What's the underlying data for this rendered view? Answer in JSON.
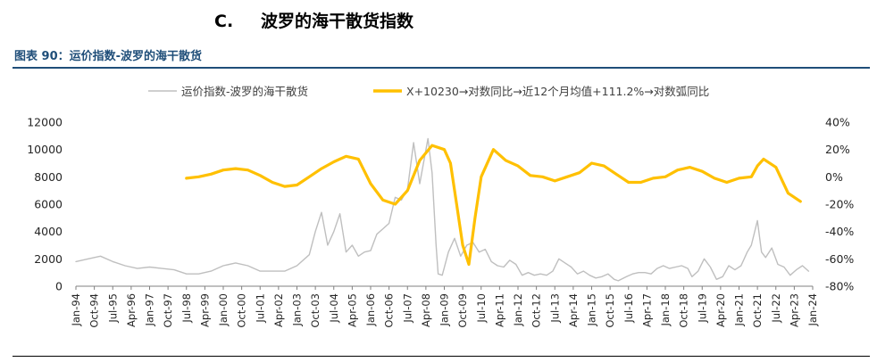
{
  "heading": {
    "number": "C.",
    "title": "波罗的海干散货指数"
  },
  "figure_caption": "图表 90：运价指数-波罗的海干散货",
  "colors": {
    "bdi_line": "#bfbfbf",
    "cycle_line": "#ffc000",
    "caption": "#1f4e79"
  },
  "chart_data": {
    "type": "line",
    "legend_position": "top",
    "grid": false,
    "x_tick_labels": [
      "Jan-94",
      "Oct-94",
      "Jul-95",
      "Apr-96",
      "Jan-97",
      "Oct-97",
      "Jul-98",
      "Apr-99",
      "Jan-00",
      "Oct-00",
      "Jul-01",
      "Apr-02",
      "Jan-03",
      "Oct-03",
      "Jul-04",
      "Apr-05",
      "Jan-06",
      "Oct-06",
      "Jul-07",
      "Apr-08",
      "Jan-09",
      "Oct-09",
      "Jul-10",
      "Apr-11",
      "Jan-12",
      "Oct-12",
      "Jul-13",
      "Apr-14",
      "Jan-15",
      "Oct-15",
      "Jul-16",
      "Apr-17",
      "Jan-18",
      "Oct-18",
      "Jul-19",
      "Apr-20",
      "Jan-21",
      "Oct-21",
      "Jul-22",
      "Apr-23",
      "Jan-24"
    ],
    "x_range": [
      "1994-01",
      "2024-01"
    ],
    "y_left": {
      "range": [
        0,
        12000
      ],
      "ticks": [
        "0",
        "2000",
        "4000",
        "6000",
        "8000",
        "10000",
        "12000"
      ]
    },
    "y_right": {
      "range": [
        -80,
        40
      ],
      "ticks": [
        "-80%",
        "-60%",
        "-40%",
        "-20%",
        "0%",
        "20%",
        "40%"
      ]
    },
    "series": [
      {
        "name": "运价指数-波罗的海干散货",
        "axis": "left",
        "x": [
          "1994-01",
          "1994-07",
          "1995-01",
          "1995-07",
          "1996-01",
          "1996-07",
          "1997-01",
          "1997-07",
          "1998-01",
          "1998-07",
          "1999-01",
          "1999-07",
          "2000-01",
          "2000-07",
          "2001-01",
          "2001-07",
          "2002-01",
          "2002-07",
          "2003-01",
          "2003-07",
          "2003-10",
          "2004-01",
          "2004-04",
          "2004-07",
          "2004-10",
          "2005-01",
          "2005-04",
          "2005-07",
          "2005-10",
          "2006-01",
          "2006-04",
          "2006-07",
          "2006-10",
          "2007-01",
          "2007-04",
          "2007-07",
          "2007-10",
          "2008-01",
          "2008-05",
          "2008-07",
          "2008-09",
          "2008-10",
          "2008-12",
          "2009-03",
          "2009-06",
          "2009-09",
          "2009-12",
          "2010-03",
          "2010-06",
          "2010-09",
          "2010-12",
          "2011-03",
          "2011-06",
          "2011-09",
          "2011-12",
          "2012-03",
          "2012-06",
          "2012-09",
          "2012-12",
          "2013-03",
          "2013-06",
          "2013-09",
          "2013-12",
          "2014-03",
          "2014-06",
          "2014-09",
          "2014-12",
          "2015-03",
          "2015-06",
          "2015-09",
          "2015-12",
          "2016-02",
          "2016-06",
          "2016-09",
          "2016-12",
          "2017-03",
          "2017-06",
          "2017-09",
          "2017-12",
          "2018-03",
          "2018-06",
          "2018-09",
          "2018-12",
          "2019-02",
          "2019-05",
          "2019-08",
          "2019-11",
          "2020-02",
          "2020-05",
          "2020-08",
          "2020-11",
          "2021-02",
          "2021-05",
          "2021-07",
          "2021-10",
          "2021-12",
          "2022-02",
          "2022-05",
          "2022-08",
          "2022-11",
          "2023-02",
          "2023-05",
          "2023-08",
          "2023-11"
        ],
        "values": [
          1800,
          2000,
          2200,
          1800,
          1500,
          1300,
          1400,
          1300,
          1200,
          900,
          900,
          1100,
          1500,
          1700,
          1500,
          1100,
          1100,
          1100,
          1500,
          2300,
          4000,
          5400,
          3000,
          4000,
          5300,
          2500,
          3000,
          2200,
          2500,
          2600,
          3800,
          4200,
          4600,
          6500,
          6300,
          7100,
          10500,
          7500,
          10800,
          8300,
          3000,
          900,
          800,
          2500,
          3500,
          2200,
          3000,
          3200,
          2500,
          2700,
          1800,
          1500,
          1400,
          1900,
          1600,
          800,
          1000,
          800,
          900,
          800,
          1100,
          2000,
          1700,
          1400,
          900,
          1100,
          800,
          600,
          700,
          900,
          500,
          400,
          700,
          900,
          1000,
          1000,
          900,
          1300,
          1500,
          1300,
          1400,
          1500,
          1300,
          700,
          1100,
          2000,
          1400,
          500,
          700,
          1500,
          1200,
          1500,
          2500,
          3000,
          4800,
          2500,
          2100,
          2800,
          1600,
          1400,
          800,
          1200,
          1500,
          1100
        ]
      },
      {
        "name": "X+10230→对数同比→近12个月均值+111.2%→对数弧同比",
        "axis": "right",
        "x": [
          "1998-07",
          "1999-01",
          "1999-07",
          "2000-01",
          "2000-07",
          "2001-01",
          "2001-07",
          "2002-01",
          "2002-07",
          "2003-01",
          "2003-07",
          "2004-01",
          "2004-07",
          "2005-01",
          "2005-07",
          "2006-01",
          "2006-07",
          "2007-01",
          "2007-07",
          "2008-01",
          "2008-07",
          "2009-01",
          "2009-04",
          "2009-07",
          "2009-10",
          "2010-01",
          "2010-04",
          "2010-07",
          "2011-01",
          "2011-07",
          "2012-01",
          "2012-07",
          "2013-01",
          "2013-07",
          "2014-01",
          "2014-07",
          "2015-01",
          "2015-07",
          "2016-01",
          "2016-07",
          "2017-01",
          "2017-07",
          "2018-01",
          "2018-07",
          "2019-01",
          "2019-07",
          "2020-01",
          "2020-07",
          "2021-01",
          "2021-07",
          "2021-10",
          "2022-01",
          "2022-07",
          "2023-01",
          "2023-07"
        ],
        "values": [
          -1,
          0,
          2,
          5,
          6,
          5,
          1,
          -4,
          -7,
          -6,
          0,
          6,
          11,
          15,
          13,
          -5,
          -17,
          -20,
          -10,
          12,
          23,
          20,
          10,
          -20,
          -50,
          -64,
          -30,
          0,
          20,
          12,
          8,
          1,
          0,
          -3,
          0,
          3,
          10,
          8,
          2,
          -4,
          -4,
          -1,
          0,
          5,
          7,
          4,
          -1,
          -4,
          -1,
          0,
          8,
          13,
          7,
          -12,
          -18
        ]
      }
    ]
  }
}
